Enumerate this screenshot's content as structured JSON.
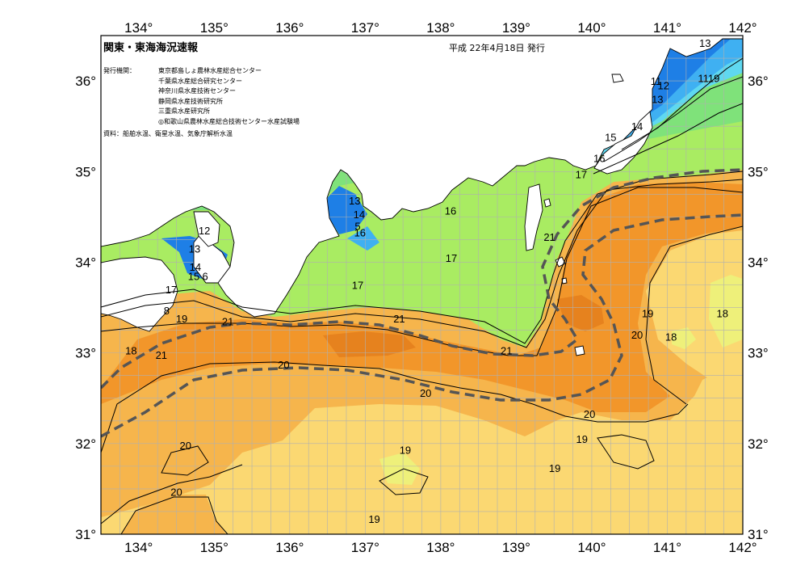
{
  "title": "関東・東海海況速報",
  "issue_date": "平成 22年4月18日 発行",
  "institutions_label": "発行機関：",
  "institutions": [
    "東京都島しょ農林水産総合センター",
    "千葉県水産総合研究センター",
    "神奈川県水産技術センター",
    "静岡県水産技術研究所",
    "三重県水産研究所",
    "◎和歌山県農林水産総合技術センター水産試験場"
  ],
  "source": "資料：船舶水温、衛星水温、気象庁解析水温",
  "longitudes": [
    "134°",
    "135°",
    "136°",
    "137°",
    "138°",
    "139°",
    "140°",
    "141°",
    "142°"
  ],
  "latitudes": [
    "36°",
    "35°",
    "34°",
    "33°",
    "32°",
    "31°"
  ],
  "colors": {
    "c13": "#1e7fe6",
    "c14": "#3fb0f2",
    "c15": "#5fd8f0",
    "c16": "#7fe27a",
    "c17": "#a9ec62",
    "c18": "#eef07a",
    "c19": "#fbd872",
    "c20": "#f6b54c",
    "c21": "#f2962a",
    "c22": "#e6821e",
    "land": "#ffffff",
    "grid": "#b0b0b0",
    "kuroshio": "#555555",
    "cold": "#6a1fc0"
  },
  "isotherm_labels": [
    {
      "t": "13",
      "lon": 141.5,
      "lat": 36.42
    },
    {
      "t": "11",
      "lon": 140.85,
      "lat": 36.0
    },
    {
      "t": "12",
      "lon": 140.95,
      "lat": 35.95
    },
    {
      "t": "13",
      "lon": 140.87,
      "lat": 35.8
    },
    {
      "t": "1119",
      "lon": 141.55,
      "lat": 36.03
    },
    {
      "t": "14",
      "lon": 140.6,
      "lat": 35.5
    },
    {
      "t": "15",
      "lon": 140.25,
      "lat": 35.38
    },
    {
      "t": "16",
      "lon": 140.1,
      "lat": 35.15
    },
    {
      "t": "17",
      "lon": 139.86,
      "lat": 34.97
    },
    {
      "t": "21",
      "lon": 139.44,
      "lat": 34.28
    },
    {
      "t": "13",
      "lon": 136.86,
      "lat": 34.68
    },
    {
      "t": "14",
      "lon": 136.92,
      "lat": 34.53
    },
    {
      "t": "5",
      "lon": 136.9,
      "lat": 34.4
    },
    {
      "t": "16",
      "lon": 136.93,
      "lat": 34.33
    },
    {
      "t": "16",
      "lon": 138.13,
      "lat": 34.57
    },
    {
      "t": "17",
      "lon": 138.14,
      "lat": 34.05
    },
    {
      "t": "17",
      "lon": 136.9,
      "lat": 33.75
    },
    {
      "t": "12",
      "lon": 134.87,
      "lat": 34.35
    },
    {
      "t": "13",
      "lon": 134.74,
      "lat": 34.15
    },
    {
      "t": "14",
      "lon": 134.75,
      "lat": 33.95
    },
    {
      "t": "15",
      "lon": 134.73,
      "lat": 33.85
    },
    {
      "t": "6",
      "lon": 134.88,
      "lat": 33.85
    },
    {
      "t": "17",
      "lon": 134.43,
      "lat": 33.7
    },
    {
      "t": "8",
      "lon": 134.37,
      "lat": 33.47
    },
    {
      "t": "19",
      "lon": 134.57,
      "lat": 33.38
    },
    {
      "t": "21",
      "lon": 135.18,
      "lat": 33.35
    },
    {
      "t": "21",
      "lon": 137.45,
      "lat": 33.38
    },
    {
      "t": "18",
      "lon": 133.9,
      "lat": 33.03
    },
    {
      "t": "21",
      "lon": 134.3,
      "lat": 32.98
    },
    {
      "t": "20",
      "lon": 135.92,
      "lat": 32.87
    },
    {
      "t": "21",
      "lon": 138.87,
      "lat": 33.03
    },
    {
      "t": "20",
      "lon": 137.8,
      "lat": 32.56
    },
    {
      "t": "19",
      "lon": 140.74,
      "lat": 33.44
    },
    {
      "t": "20",
      "lon": 140.6,
      "lat": 33.2
    },
    {
      "t": "18",
      "lon": 141.05,
      "lat": 33.18
    },
    {
      "t": "18",
      "lon": 141.73,
      "lat": 33.44
    },
    {
      "t": "20",
      "lon": 139.97,
      "lat": 32.33
    },
    {
      "t": "19",
      "lon": 139.87,
      "lat": 32.05
    },
    {
      "t": "20",
      "lon": 134.62,
      "lat": 31.98
    },
    {
      "t": "19",
      "lon": 137.53,
      "lat": 31.93
    },
    {
      "t": "19",
      "lon": 139.51,
      "lat": 31.73
    },
    {
      "t": "20",
      "lon": 134.5,
      "lat": 31.47
    },
    {
      "t": "19",
      "lon": 137.12,
      "lat": 31.17
    }
  ]
}
